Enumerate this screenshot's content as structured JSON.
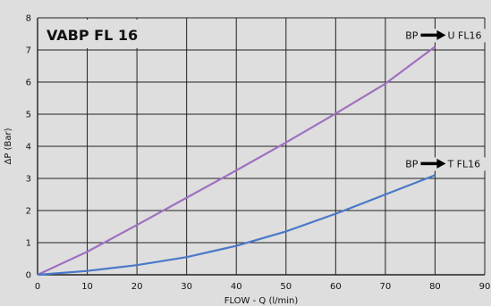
{
  "chart_data": {
    "type": "line",
    "title": "VABP FL 16",
    "xlabel": "FLOW - Q (l/min)",
    "ylabel": "ΔP (Bar)",
    "xlim": [
      0,
      90
    ],
    "ylim": [
      0,
      8
    ],
    "xticks": [
      "0",
      "10",
      "20",
      "30",
      "40",
      "50",
      "60",
      "70",
      "80",
      "90"
    ],
    "yticks": [
      "0",
      "1",
      "2",
      "3",
      "4",
      "5",
      "6",
      "7",
      "8"
    ],
    "grid": true,
    "series": [
      {
        "name": "U FL16",
        "label_prefix": "BP",
        "color": "#a070c0",
        "x": [
          0,
          10,
          20,
          30,
          40,
          50,
          60,
          70,
          80
        ],
        "y": [
          0,
          0.72,
          1.55,
          2.4,
          3.25,
          4.12,
          5.02,
          5.95,
          7.1
        ]
      },
      {
        "name": "T FL16",
        "label_prefix": "BP",
        "color": "#4a78c8",
        "x": [
          0,
          10,
          20,
          30,
          40,
          50,
          60,
          70,
          80
        ],
        "y": [
          0,
          0.12,
          0.3,
          0.55,
          0.9,
          1.35,
          1.9,
          2.5,
          3.1
        ]
      }
    ]
  }
}
